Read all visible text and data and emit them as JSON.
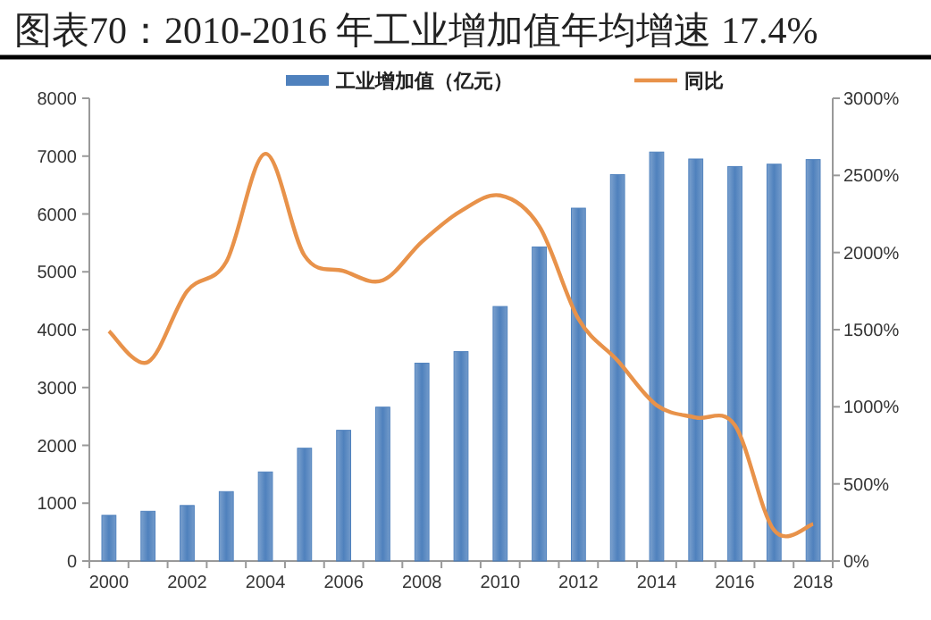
{
  "chart_data": {
    "type": "bar",
    "title": "图表70：2010-2016 年工业增加值年均增速 17.4%",
    "categories": [
      "2000",
      null,
      "2002",
      null,
      "2004",
      null,
      "2006",
      null,
      "2008",
      null,
      "2010",
      null,
      "2012",
      null,
      "2014",
      null,
      "2016",
      null,
      "2018"
    ],
    "series": [
      {
        "name": "工业增加值（亿元）",
        "color": "#4f81bd",
        "values": [
          790,
          860,
          960,
          1200,
          1540,
          1950,
          2260,
          2660,
          3420,
          3620,
          4400,
          5430,
          6100,
          6680,
          7070,
          6950,
          6820,
          6860,
          6940
        ]
      },
      {
        "name": "同比",
        "type": "line",
        "axis": "y2",
        "color": "#e8924a",
        "values": [
          1490,
          1290,
          1750,
          1940,
          2640,
          1980,
          1880,
          1820,
          2070,
          2270,
          2370,
          2170,
          1570,
          1300,
          1010,
          930,
          880,
          200,
          240
        ]
      }
    ],
    "ylim": [
      0,
      8000
    ],
    "yticks": [
      0,
      1000,
      2000,
      3000,
      4000,
      5000,
      6000,
      7000,
      8000
    ],
    "y2lim": [
      0,
      3000
    ],
    "y2ticks": [
      {
        "value": 0,
        "label": "0%"
      },
      {
        "value": 500,
        "label": "500%"
      },
      {
        "value": 1000,
        "label": "1000%"
      },
      {
        "value": 1500,
        "label": "1500%"
      },
      {
        "value": 2000,
        "label": "2000%"
      },
      {
        "value": 2500,
        "label": "2500%"
      },
      {
        "value": 3000,
        "label": "3000%"
      }
    ],
    "legend": "top",
    "grid": false
  }
}
